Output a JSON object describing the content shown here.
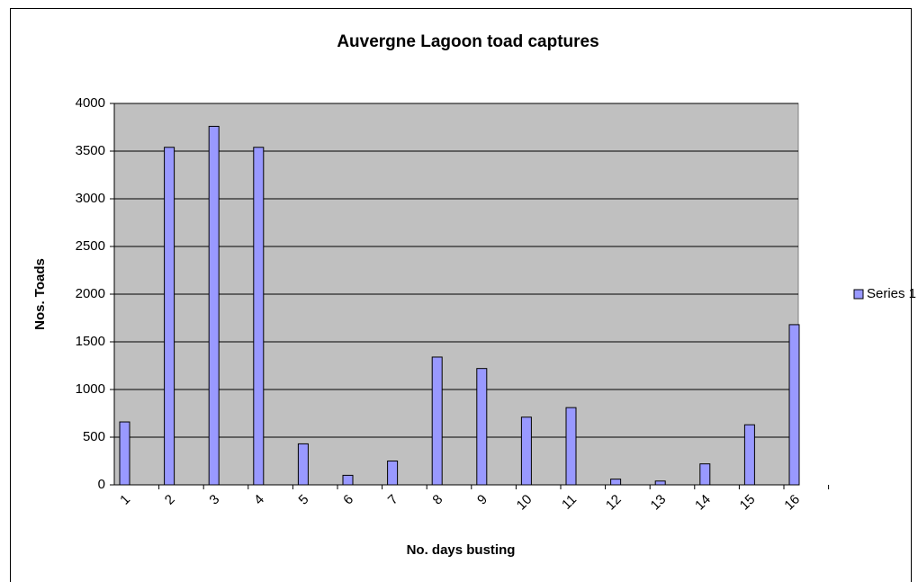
{
  "chart_data": {
    "type": "bar",
    "title": "Auvergne Lagoon toad captures",
    "x_label": "No. days busting",
    "y_label": "Nos. Toads",
    "categories": [
      "1",
      "2",
      "3",
      "4",
      "5",
      "6",
      "7",
      "8",
      "9",
      "10",
      "11",
      "12",
      "13",
      "14",
      "15",
      "16"
    ],
    "series": [
      {
        "name": "Series 1",
        "color": "#9999ff",
        "values": [
          660,
          3540,
          3760,
          3540,
          430,
          100,
          250,
          1340,
          1220,
          710,
          810,
          60,
          40,
          220,
          630,
          1680
        ]
      }
    ],
    "ylim": [
      0,
      4000
    ],
    "yticks": [
      0,
      500,
      1000,
      1500,
      2000,
      2500,
      3000,
      3500,
      4000
    ],
    "grid": true,
    "legend": "right"
  }
}
